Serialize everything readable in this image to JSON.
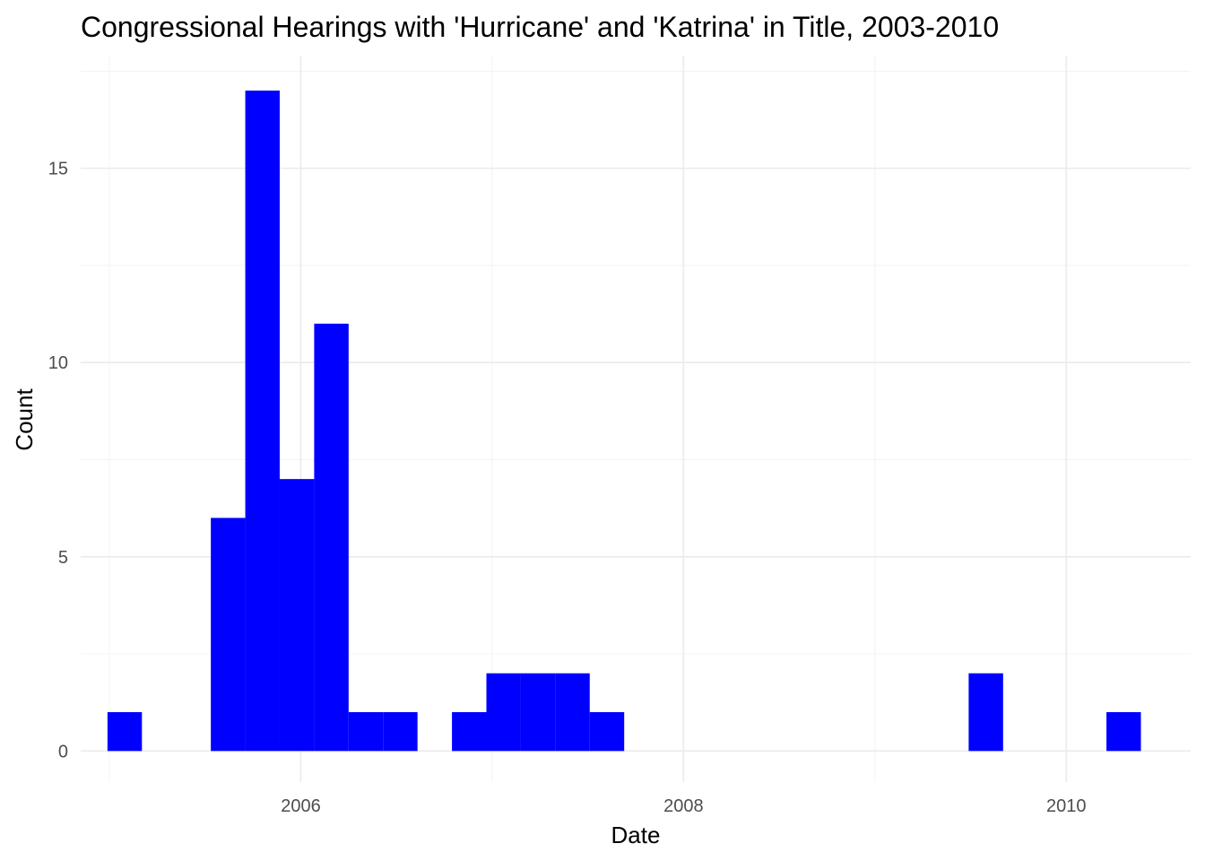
{
  "chart_data": {
    "type": "bar",
    "title": "Congressional Hearings with 'Hurricane' and 'Katrina' in Title, 2003-2010",
    "xlabel": "Date",
    "ylabel": "Count",
    "bar_color": "#0000ff",
    "xlim": [
      2004.85,
      2010.65
    ],
    "ylim": [
      -0.8,
      17.9
    ],
    "x_ticks": [
      2006,
      2008,
      2010
    ],
    "y_ticks": [
      0,
      5,
      10,
      15
    ],
    "grid": true,
    "bins": [
      {
        "start": 2004.99,
        "end": 2005.17,
        "count": 1
      },
      {
        "start": 2005.17,
        "end": 2005.35,
        "count": 0
      },
      {
        "start": 2005.35,
        "end": 2005.53,
        "count": 0
      },
      {
        "start": 2005.53,
        "end": 2005.71,
        "count": 6
      },
      {
        "start": 2005.71,
        "end": 2005.89,
        "count": 17
      },
      {
        "start": 2005.89,
        "end": 2006.07,
        "count": 7
      },
      {
        "start": 2006.07,
        "end": 2006.25,
        "count": 11
      },
      {
        "start": 2006.25,
        "end": 2006.43,
        "count": 1
      },
      {
        "start": 2006.43,
        "end": 2006.61,
        "count": 1
      },
      {
        "start": 2006.61,
        "end": 2006.79,
        "count": 0
      },
      {
        "start": 2006.79,
        "end": 2006.97,
        "count": 1
      },
      {
        "start": 2006.97,
        "end": 2007.15,
        "count": 2
      },
      {
        "start": 2007.15,
        "end": 2007.33,
        "count": 2
      },
      {
        "start": 2007.33,
        "end": 2007.51,
        "count": 2
      },
      {
        "start": 2007.51,
        "end": 2007.69,
        "count": 1
      },
      {
        "start": 2009.49,
        "end": 2009.67,
        "count": 2
      },
      {
        "start": 2010.21,
        "end": 2010.39,
        "count": 1
      }
    ]
  }
}
